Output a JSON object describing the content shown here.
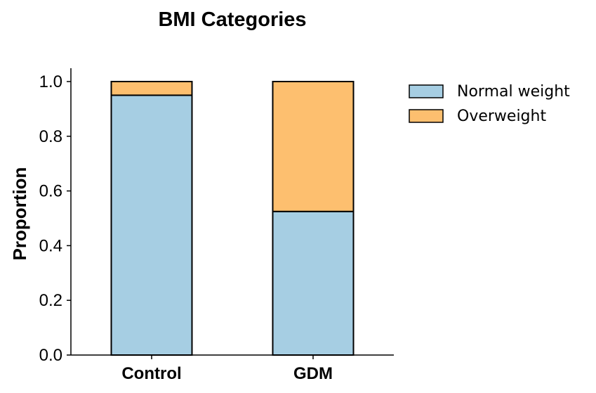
{
  "chart_data": {
    "type": "bar",
    "stacked": true,
    "title": "BMI Categories",
    "xlabel": "",
    "ylabel": "Proportion",
    "ylim": [
      0,
      1.05
    ],
    "yticks": [
      "0.0",
      "0.2",
      "0.4",
      "0.6",
      "0.8",
      "1.0"
    ],
    "categories": [
      "Control",
      "GDM"
    ],
    "series": [
      {
        "name": "Normal weight",
        "values": [
          0.95,
          0.525
        ],
        "color": "#a6cee3"
      },
      {
        "name": "Overweight",
        "values": [
          0.05,
          0.475
        ],
        "color": "#fdbf6f"
      }
    ],
    "legend": {
      "position": "top-right-outside"
    },
    "grid": false
  }
}
